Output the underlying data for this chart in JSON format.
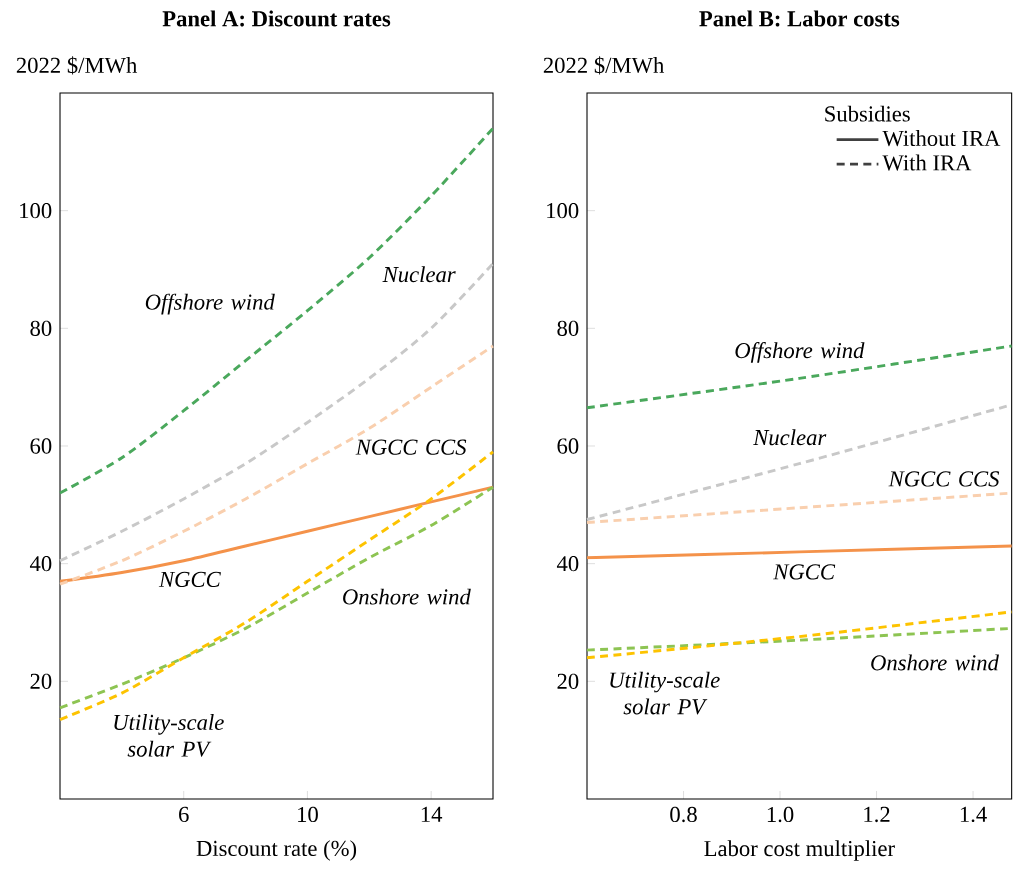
{
  "chart_data": [
    {
      "type": "line",
      "title": "Panel A: Discount rates",
      "ylabel": "2022 $/MWh",
      "xlabel": "Discount rate (%)",
      "xlim": [
        2,
        16
      ],
      "ylim": [
        0,
        120
      ],
      "xticks": [
        6,
        10,
        14
      ],
      "yticks": [
        20,
        40,
        60,
        80,
        100
      ],
      "x": [
        2,
        4,
        6,
        8,
        10,
        12,
        14,
        16
      ],
      "series": [
        {
          "name": "NGCC",
          "color": "#f4924a",
          "line_style": "solid",
          "values": [
            37,
            38.5,
            40.5,
            43,
            45.5,
            48,
            50.5,
            53
          ]
        },
        {
          "name": "Offshore wind",
          "color": "#4aa85c",
          "line_style": "dashed",
          "values": [
            52,
            58,
            66,
            74.5,
            83,
            92,
            102.5,
            114
          ]
        },
        {
          "name": "Nuclear",
          "color": "#c8c8c8",
          "line_style": "dashed",
          "values": [
            40.5,
            45.5,
            51,
            57,
            64,
            71.5,
            80,
            91
          ]
        },
        {
          "name": "NGCC CCS",
          "color": "#f9cfae",
          "line_style": "dashed",
          "values": [
            36.5,
            40.5,
            45.5,
            51,
            57,
            63,
            70,
            77
          ]
        },
        {
          "name": "Onshore wind",
          "color": "#8dc452",
          "line_style": "dashed",
          "values": [
            15.5,
            19.5,
            24,
            29,
            35,
            41,
            46.5,
            53
          ]
        },
        {
          "name": "Utility-scale solar PV",
          "color": "#fdc300",
          "line_style": "dashed",
          "values": [
            13.5,
            18,
            24,
            30,
            37,
            44,
            51,
            59
          ]
        }
      ]
    },
    {
      "type": "line",
      "title": "Panel B: Labor costs",
      "ylabel": "2022 $/MWh",
      "xlabel": "Labor cost multiplier",
      "xlim": [
        0.6,
        1.48
      ],
      "ylim": [
        0,
        120
      ],
      "xticks": [
        0.8,
        {
          "value": 1.0,
          "label": "1.0"
        },
        1.2,
        1.4
      ],
      "yticks": [
        20,
        40,
        60,
        80,
        100
      ],
      "x": [
        0.6,
        1.04,
        1.48
      ],
      "legend_title": "Subsidies",
      "series": [
        {
          "name": "NGCC",
          "color": "#f4924a",
          "line_style": "solid",
          "values": [
            41,
            42,
            43
          ]
        },
        {
          "name": "Offshore wind",
          "color": "#4aa85c",
          "line_style": "dashed",
          "values": [
            66.5,
            71.5,
            77
          ]
        },
        {
          "name": "Nuclear",
          "color": "#c8c8c8",
          "line_style": "dashed",
          "values": [
            47.5,
            57,
            67
          ]
        },
        {
          "name": "NGCC CCS",
          "color": "#f9cfae",
          "line_style": "dashed",
          "values": [
            47,
            49.5,
            52
          ]
        },
        {
          "name": "Onshore wind",
          "color": "#8dc452",
          "line_style": "dashed",
          "values": [
            25.3,
            27,
            29
          ]
        },
        {
          "name": "Utility-scale solar PV",
          "color": "#fdc300",
          "line_style": "dashed",
          "values": [
            24,
            27.6,
            31.8
          ]
        }
      ],
      "annotations": [
        "Without IRA",
        "With IRA"
      ]
    }
  ]
}
